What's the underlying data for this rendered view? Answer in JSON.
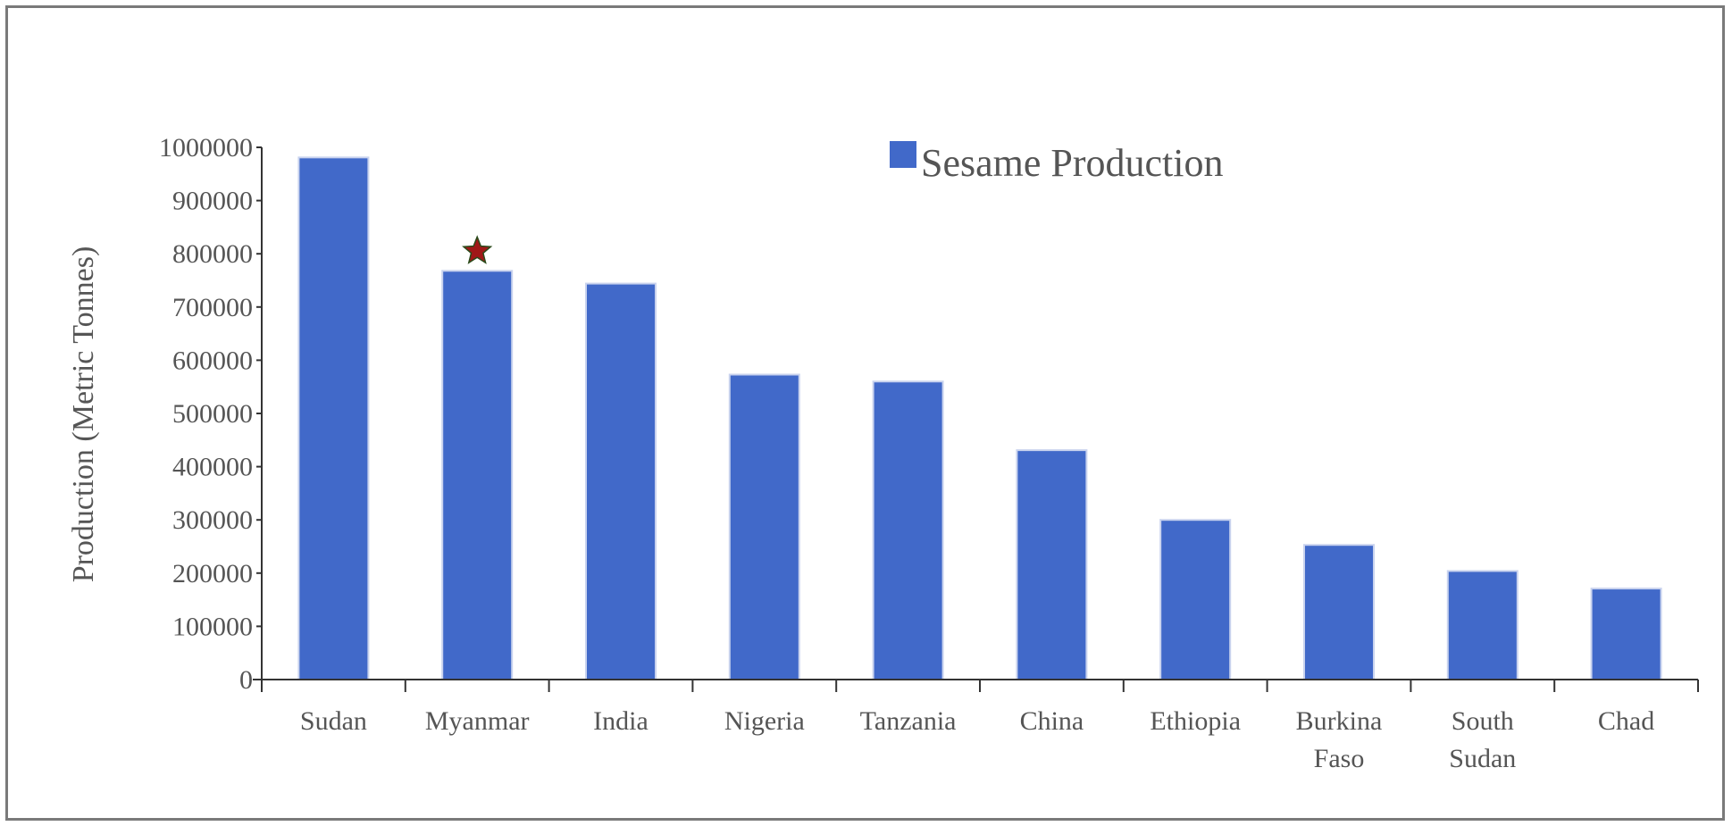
{
  "chart_data": {
    "type": "bar",
    "title": "",
    "xlabel": "",
    "ylabel": "Production (Metric Tonnes)",
    "ylim": [
      0,
      1000000
    ],
    "yticks": [
      0,
      100000,
      200000,
      300000,
      400000,
      500000,
      600000,
      700000,
      800000,
      900000,
      1000000
    ],
    "categories": [
      [
        "Sudan"
      ],
      [
        "Myanmar"
      ],
      [
        "India"
      ],
      [
        "Nigeria"
      ],
      [
        "Tanzania"
      ],
      [
        "China"
      ],
      [
        "Ethiopia"
      ],
      [
        "Burkina",
        "Faso"
      ],
      [
        "South",
        "Sudan"
      ],
      [
        "Chad"
      ]
    ],
    "series": [
      {
        "name": "Sesame Production",
        "color": "#4169c9",
        "values": [
          981000,
          768000,
          744000,
          573000,
          560000,
          431000,
          300000,
          253000,
          204000,
          171000
        ]
      }
    ],
    "legend_position": "top-center",
    "grid": false,
    "marker": {
      "category_index": 1,
      "symbol": "star",
      "color": "#a01818",
      "stroke": "#2a4a1a"
    }
  }
}
